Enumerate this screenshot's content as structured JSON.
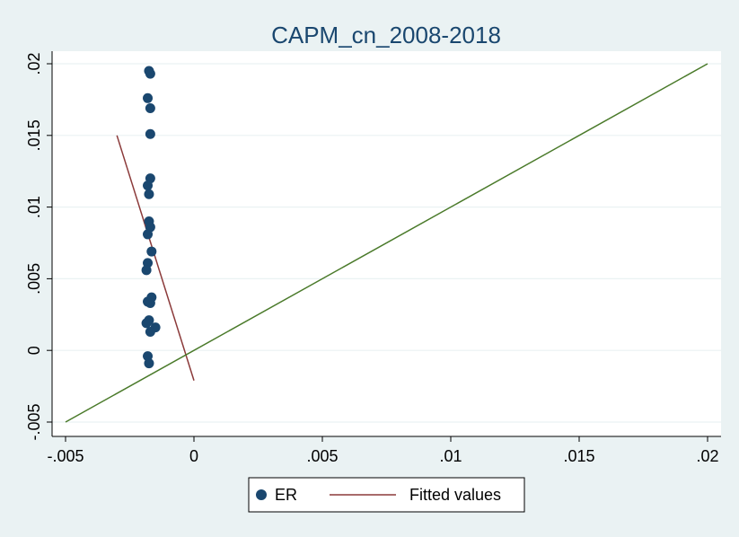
{
  "chart_data": {
    "type": "scatter",
    "title": "CAPM_cn_2008-2018",
    "xlabel": "",
    "ylabel": "",
    "xlim": [
      -0.005,
      0.02
    ],
    "ylim": [
      -0.005,
      0.02
    ],
    "x_ticks": [
      {
        "value": -0.005,
        "label": "-.005"
      },
      {
        "value": 0,
        "label": "0"
      },
      {
        "value": 0.005,
        "label": ".005"
      },
      {
        "value": 0.01,
        "label": ".01"
      },
      {
        "value": 0.015,
        "label": ".015"
      },
      {
        "value": 0.02,
        "label": ".02"
      }
    ],
    "y_ticks": [
      {
        "value": -0.005,
        "label": "-.005"
      },
      {
        "value": 0,
        "label": "0"
      },
      {
        "value": 0.005,
        "label": ".005"
      },
      {
        "value": 0.01,
        "label": ".01"
      },
      {
        "value": 0.015,
        "label": ".015"
      },
      {
        "value": 0.02,
        "label": ".02"
      }
    ],
    "grid": true,
    "legend_position": "bottom",
    "series": [
      {
        "name": "ER",
        "kind": "scatter",
        "color": "#1a476f",
        "points": [
          {
            "x": -0.00175,
            "y": 0.0195
          },
          {
            "x": -0.0017,
            "y": 0.0193
          },
          {
            "x": -0.0018,
            "y": 0.0176
          },
          {
            "x": -0.0017,
            "y": 0.0169
          },
          {
            "x": -0.0017,
            "y": 0.0151
          },
          {
            "x": -0.0017,
            "y": 0.012
          },
          {
            "x": -0.0018,
            "y": 0.0115
          },
          {
            "x": -0.00175,
            "y": 0.0109
          },
          {
            "x": -0.00175,
            "y": 0.009
          },
          {
            "x": -0.0017,
            "y": 0.0086
          },
          {
            "x": -0.0018,
            "y": 0.0081
          },
          {
            "x": -0.00165,
            "y": 0.0069
          },
          {
            "x": -0.0018,
            "y": 0.0061
          },
          {
            "x": -0.00185,
            "y": 0.0056
          },
          {
            "x": -0.00165,
            "y": 0.0037
          },
          {
            "x": -0.0018,
            "y": 0.0034
          },
          {
            "x": -0.0017,
            "y": 0.0033
          },
          {
            "x": -0.00175,
            "y": 0.0021
          },
          {
            "x": -0.00185,
            "y": 0.0019
          },
          {
            "x": -0.0015,
            "y": 0.0016
          },
          {
            "x": -0.0017,
            "y": 0.0013
          },
          {
            "x": -0.0018,
            "y": -0.0004
          },
          {
            "x": -0.00175,
            "y": -0.0009
          }
        ]
      },
      {
        "name": "Fitted values",
        "kind": "line",
        "color": "#8b3a3a",
        "points": [
          {
            "x": -0.003,
            "y": 0.015
          },
          {
            "x": 0.0,
            "y": -0.0021
          }
        ]
      },
      {
        "name": "",
        "kind": "line",
        "color": "#4a7a2a",
        "points": [
          {
            "x": -0.005,
            "y": -0.005
          },
          {
            "x": 0.02,
            "y": 0.02
          }
        ]
      }
    ]
  }
}
